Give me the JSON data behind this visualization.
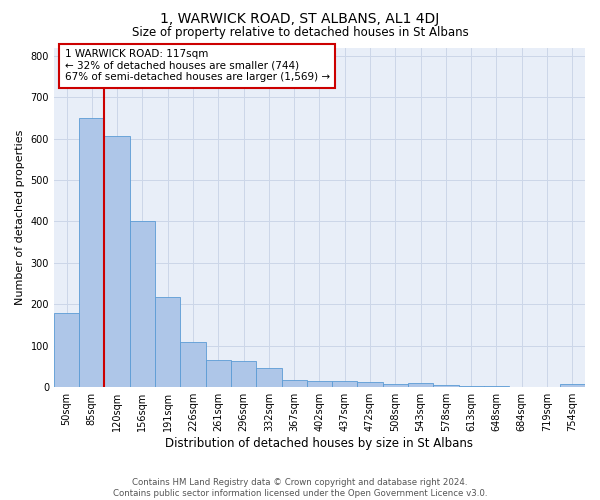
{
  "title": "1, WARWICK ROAD, ST ALBANS, AL1 4DJ",
  "subtitle": "Size of property relative to detached houses in St Albans",
  "xlabel": "Distribution of detached houses by size in St Albans",
  "ylabel": "Number of detached properties",
  "footer_line1": "Contains HM Land Registry data © Crown copyright and database right 2024.",
  "footer_line2": "Contains public sector information licensed under the Open Government Licence v3.0.",
  "bar_labels": [
    "50sqm",
    "85sqm",
    "120sqm",
    "156sqm",
    "191sqm",
    "226sqm",
    "261sqm",
    "296sqm",
    "332sqm",
    "367sqm",
    "402sqm",
    "437sqm",
    "472sqm",
    "508sqm",
    "543sqm",
    "578sqm",
    "613sqm",
    "648sqm",
    "684sqm",
    "719sqm",
    "754sqm"
  ],
  "bar_values": [
    178,
    651,
    607,
    400,
    218,
    108,
    65,
    63,
    47,
    18,
    16,
    16,
    13,
    7,
    9,
    5,
    4,
    2,
    1,
    0,
    7
  ],
  "bar_color": "#aec6e8",
  "bar_edge_color": "#5b9bd5",
  "grid_color": "#ccd6e8",
  "background_color": "#e8eef8",
  "property_line_label": "1 WARWICK ROAD: 117sqm",
  "annotation_line1": "← 32% of detached houses are smaller (744)",
  "annotation_line2": "67% of semi-detached houses are larger (1,569) →",
  "annotation_box_color": "#cc0000",
  "ylim": [
    0,
    820
  ],
  "yticks": [
    0,
    100,
    200,
    300,
    400,
    500,
    600,
    700,
    800
  ]
}
